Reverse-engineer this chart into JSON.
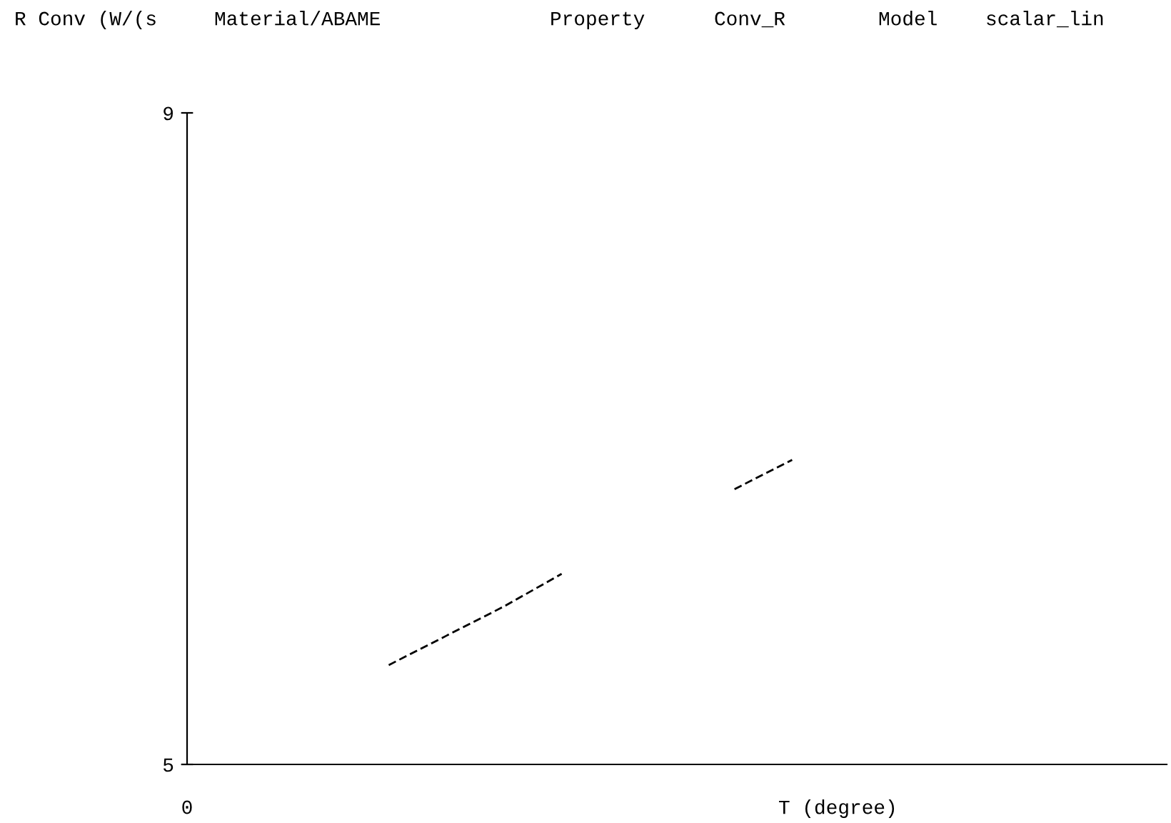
{
  "chart_data": {
    "type": "line",
    "ylabel": "R Conv (W/(s",
    "xlabel": "T (degree)",
    "annotations": [
      "Material/ABAME",
      "Property",
      "Conv_R",
      "Model",
      "scalar_lin",
      "0"
    ],
    "categories": [
      null,
      null,
      null,
      null,
      null,
      null,
      null,
      null,
      null,
      null,
      null,
      null,
      null,
      null,
      null,
      null,
      null
    ],
    "series": [
      {
        "color": "#000000",
        "values": [
          null,
          null,
          null,
          5.61,
          5.79,
          5.97,
          6.17,
          null,
          null,
          6.69,
          6.87,
          null,
          null,
          null,
          null,
          null,
          null
        ]
      }
    ],
    "ylim": [
      5,
      9
    ],
    "yticks": [
      5,
      9
    ],
    "line_style": "dashed",
    "marker": "none",
    "grid": false,
    "legend": false
  }
}
